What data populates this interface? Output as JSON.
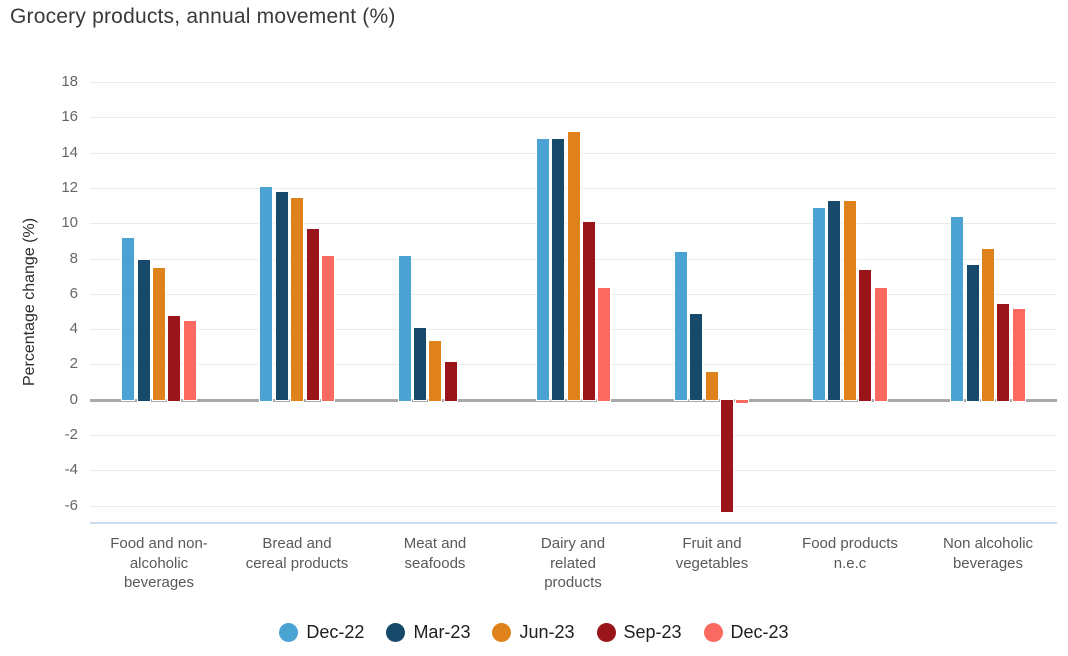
{
  "title": "Grocery products, annual movement (%)",
  "chart_data": {
    "type": "bar",
    "title": "Grocery products, annual movement (%)",
    "xlabel": "",
    "ylabel": "Percentage change (%)",
    "ylim": [
      -7,
      18
    ],
    "ytick_step": 2,
    "yticks": [
      18,
      16,
      14,
      12,
      10,
      8,
      6,
      4,
      2,
      0,
      -2,
      -4,
      -6
    ],
    "grid": true,
    "legend_position": "bottom",
    "categories": [
      "Food and non-\nalcoholic\nbeverages",
      "Bread and\ncereal products",
      "Meat and\nseafoods",
      "Dairy and\nrelated\nproducts",
      "Fruit and\nvegetables",
      "Food products\nn.e.c",
      "Non alcoholic\nbeverages"
    ],
    "series": [
      {
        "name": "Dec-22",
        "color": "#4BA3D4",
        "values": [
          9.2,
          12.1,
          8.2,
          14.8,
          8.4,
          10.9,
          10.4
        ]
      },
      {
        "name": "Mar-23",
        "color": "#17496B",
        "values": [
          8.0,
          11.8,
          4.1,
          14.8,
          4.9,
          11.3,
          7.7
        ]
      },
      {
        "name": "Jun-23",
        "color": "#E0821B",
        "values": [
          7.5,
          11.5,
          3.4,
          15.2,
          1.6,
          11.3,
          8.6
        ]
      },
      {
        "name": "Sep-23",
        "color": "#9A1519",
        "values": [
          4.8,
          9.7,
          2.2,
          10.1,
          -6.4,
          7.4,
          5.5
        ]
      },
      {
        "name": "Dec-23",
        "color": "#FA6A60",
        "values": [
          4.5,
          8.2,
          0,
          6.4,
          -0.2,
          6.4,
          5.2
        ]
      }
    ],
    "colors": {
      "gridline": "#ebebeb",
      "zero_line": "#a9a9a9",
      "plot_bottom_border": "#ccdcef",
      "tick_label": "#666666",
      "category_label": "#595959",
      "title_text": "#3a3a3a"
    }
  }
}
